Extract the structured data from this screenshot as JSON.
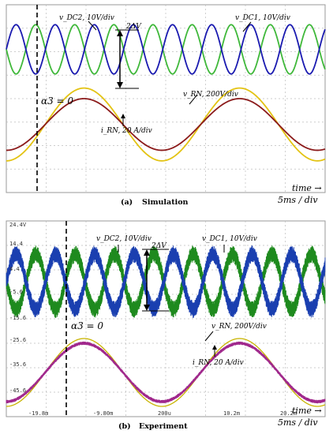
{
  "chart_data": [
    {
      "type": "line",
      "panel": "a",
      "caption_label": "(a)",
      "caption_title": "Simulation",
      "annotations": {
        "vdc2": "v_DC2, 10V/div",
        "vdc1": "v_DC1, 10V/div",
        "delta": "2ΔV",
        "alpha": "α3 = 0",
        "vrn": "v_RN, 200V/div",
        "irn": "i_RN, 20 A/div",
        "time": "time →",
        "timediv": "5ms / div"
      },
      "divisions_per_screen": 8,
      "x_div_units": "5 ms",
      "series": [
        {
          "name": "v_DC2",
          "color": "#3fb83a",
          "periods_in_screen": 8.15,
          "phase_deg": 180,
          "amplitude_div": 1.05,
          "center_div": 2.1
        },
        {
          "name": "v_DC1",
          "color": "#1a1ab0",
          "periods_in_screen": 8.15,
          "phase_deg": 0,
          "amplitude_div": 1.05,
          "center_div": 2.1
        },
        {
          "name": "v_RN",
          "color": "#e3c313",
          "periods_in_screen": 2.05,
          "phase_deg": -90,
          "amplitude_div": 1.55,
          "center_div": -1.1
        },
        {
          "name": "i_RN",
          "color": "#8b1a1a",
          "periods_in_screen": 2.05,
          "phase_deg": -90,
          "amplitude_div": 1.1,
          "center_div": -1.1
        }
      ]
    },
    {
      "type": "line",
      "panel": "b",
      "caption_label": "(b)",
      "caption_title": "Experiment",
      "y_tick_labels": [
        "24.4V",
        "14.4",
        "4.4",
        "-5.6",
        "-15.6",
        "-25.6",
        "-35.6",
        "-45.6"
      ],
      "x_tick_labels": [
        "-19.8m",
        "-9.80m",
        "200u",
        "10.2m",
        "20.2m"
      ],
      "annotations": {
        "vdc2": "v_DC2, 10V/div",
        "vdc1": "v_DC1, 10V/div",
        "delta": "2ΔV",
        "alpha": "α3 = 0",
        "vrn": "v_RN, 200V/div",
        "irn": "i_RN, 20 A/div",
        "time": "time →",
        "timediv": "5ms / div"
      },
      "series": [
        {
          "name": "v_DC2",
          "color": "#1e8a1e",
          "periods_in_screen": 8.1,
          "phase_deg": 180
        },
        {
          "name": "v_DC1",
          "color": "#1a3fb0",
          "periods_in_screen": 8.1,
          "phase_deg": 0
        },
        {
          "name": "v_RN",
          "color": "#c8b400",
          "periods_in_screen": 2.05,
          "phase_deg": -90
        },
        {
          "name": "i_RN",
          "color": "#a0288c",
          "periods_in_screen": 2.05,
          "phase_deg": -90
        }
      ]
    }
  ]
}
